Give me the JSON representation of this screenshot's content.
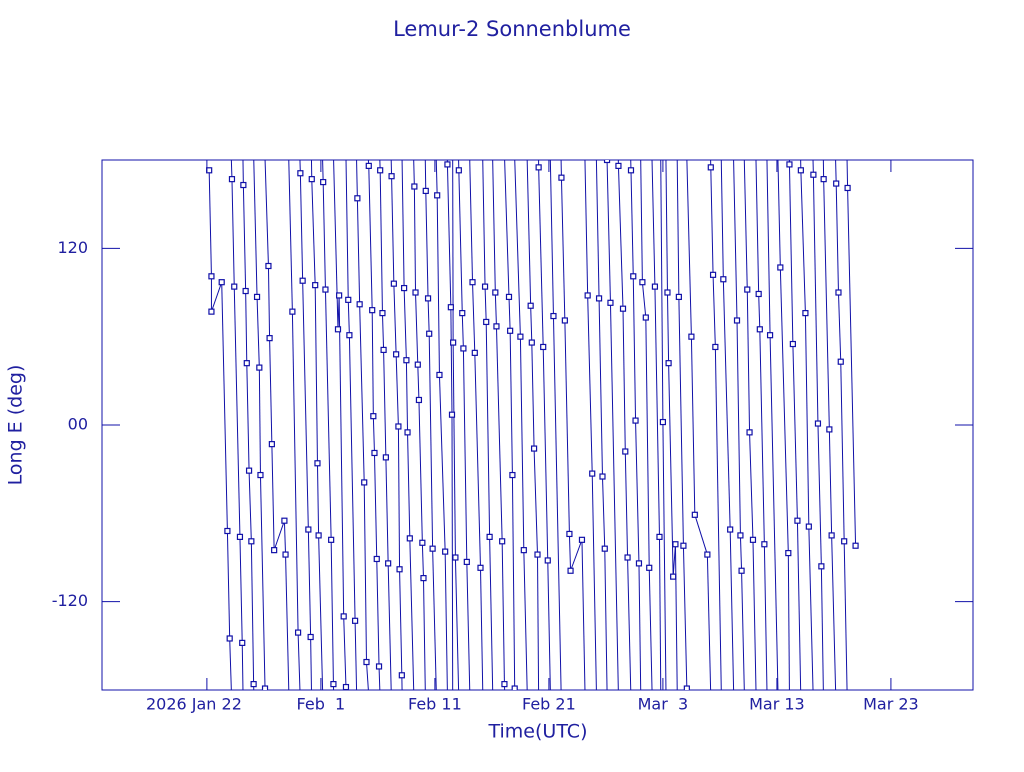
{
  "chart_data": {
    "type": "line",
    "title": "Lemur-2 Sonnenblume",
    "x_label": "Time(UTC)",
    "y_label": "Long E (deg)",
    "color": "#1010a8",
    "xlim": [
      12.8,
      89.2
    ],
    "xticks": [
      {
        "value": 22,
        "label": "2026 Jan 22"
      },
      {
        "value": 32,
        "label": "Feb  1"
      },
      {
        "value": 42,
        "label": "Feb 11"
      },
      {
        "value": 52,
        "label": "Feb 21"
      },
      {
        "value": 62,
        "label": "Mar  3"
      },
      {
        "value": 72,
        "label": "Mar 13"
      },
      {
        "value": 82,
        "label": "Mar 23"
      }
    ],
    "ylim": [
      -180,
      180
    ],
    "yticks": [
      -120,
      {
        "value": 0,
        "label": "00"
      },
      120
    ],
    "x": [
      22.2,
      22.4,
      22.4,
      23.3,
      23.8,
      24.0,
      24.2,
      24.4,
      24.9,
      25.1,
      25.2,
      25.4,
      25.5,
      25.7,
      25.9,
      26.1,
      26.4,
      26.6,
      26.7,
      27.1,
      27.4,
      27.5,
      27.7,
      27.9,
      28.8,
      28.9,
      29.5,
      30.0,
      30.2,
      30.4,
      30.9,
      31.1,
      31.2,
      31.5,
      31.7,
      31.8,
      32.2,
      32.4,
      32.9,
      33.1,
      33.5,
      33.6,
      34.0,
      34.2,
      34.4,
      34.5,
      35.0,
      35.2,
      35.4,
      35.8,
      36.0,
      36.2,
      36.5,
      36.6,
      36.7,
      36.9,
      37.1,
      37.2,
      37.4,
      37.5,
      37.7,
      37.9,
      38.2,
      38.4,
      38.6,
      38.8,
      38.9,
      39.1,
      39.3,
      39.5,
      39.6,
      39.8,
      40.2,
      40.3,
      40.5,
      40.6,
      40.9,
      41.0,
      41.2,
      41.4,
      41.5,
      41.8,
      42.2,
      42.4,
      42.9,
      43.1,
      43.4,
      43.5,
      43.6,
      43.8,
      44.1,
      44.4,
      44.5,
      44.8,
      45.3,
      45.5,
      46.0,
      46.4,
      46.5,
      46.8,
      47.3,
      47.4,
      47.9,
      48.1,
      48.5,
      48.6,
      48.8,
      49.0,
      49.5,
      49.8,
      50.4,
      50.5,
      50.7,
      51.0,
      51.1,
      51.5,
      51.9,
      52.4,
      53.1,
      53.4,
      53.8,
      53.9,
      54.9,
      55.4,
      55.8,
      56.4,
      56.7,
      56.9,
      57.1,
      57.4,
      58.1,
      58.5,
      58.7,
      58.9,
      59.2,
      59.4,
      59.6,
      59.9,
      60.2,
      60.5,
      60.8,
      61.3,
      61.7,
      62.0,
      62.4,
      62.5,
      62.9,
      63.1,
      63.4,
      63.8,
      64.1,
      64.5,
      64.8,
      65.9,
      66.2,
      66.4,
      66.6,
      67.3,
      67.9,
      68.5,
      68.8,
      68.9,
      69.4,
      69.6,
      69.9,
      70.4,
      70.5,
      70.9,
      71.4,
      72.3,
      73.0,
      73.1,
      73.4,
      73.8,
      74.1,
      74.5,
      74.8,
      75.2,
      75.6,
      75.9,
      76.1,
      76.6,
      76.8,
      77.2,
      77.4,
      77.6,
      77.9,
      78.2,
      78.9
    ],
    "values": [
      173,
      101,
      77,
      97,
      -72,
      -145,
      167,
      94,
      -76,
      -148,
      163,
      91,
      42,
      -31,
      -79,
      -176,
      87,
      39,
      -34,
      -179,
      108,
      59,
      -13,
      -85,
      -65,
      -88,
      77,
      -141,
      171,
      98,
      -71,
      -144,
      167,
      95,
      -26,
      -75,
      165,
      92,
      -78,
      -176,
      65,
      88,
      -130,
      -178,
      85,
      61,
      -133,
      154,
      82,
      -39,
      -161,
      176,
      78,
      6,
      -19,
      -91,
      -164,
      173,
      76,
      51,
      -22,
      -94,
      169,
      96,
      48,
      -1,
      -98,
      -170,
      93,
      44,
      -5,
      -77,
      162,
      90,
      41,
      17,
      -80,
      -104,
      159,
      86,
      62,
      -84,
      156,
      34,
      -86,
      177,
      80,
      7,
      56,
      -90,
      173,
      76,
      52,
      -93,
      97,
      49,
      -97,
      94,
      70,
      -76,
      90,
      67,
      -79,
      -176,
      87,
      64,
      -34,
      -179,
      60,
      -85,
      81,
      56,
      -16,
      -88,
      175,
      53,
      -92,
      74,
      168,
      71,
      -74,
      -99,
      -78,
      88,
      -33,
      86,
      -35,
      -84,
      180,
      83,
      176,
      79,
      -18,
      -90,
      173,
      101,
      3,
      -94,
      97,
      73,
      -97,
      94,
      -76,
      2,
      90,
      42,
      -103,
      -81,
      87,
      -82,
      -179,
      60,
      -61,
      -88,
      175,
      102,
      53,
      99,
      -71,
      71,
      -75,
      -99,
      92,
      -5,
      -78,
      89,
      65,
      -81,
      61,
      107,
      -87,
      177,
      55,
      -65,
      173,
      76,
      -69,
      170,
      1,
      -96,
      167,
      -3,
      -75,
      164,
      90,
      43,
      -79,
      161,
      -82
    ]
  }
}
